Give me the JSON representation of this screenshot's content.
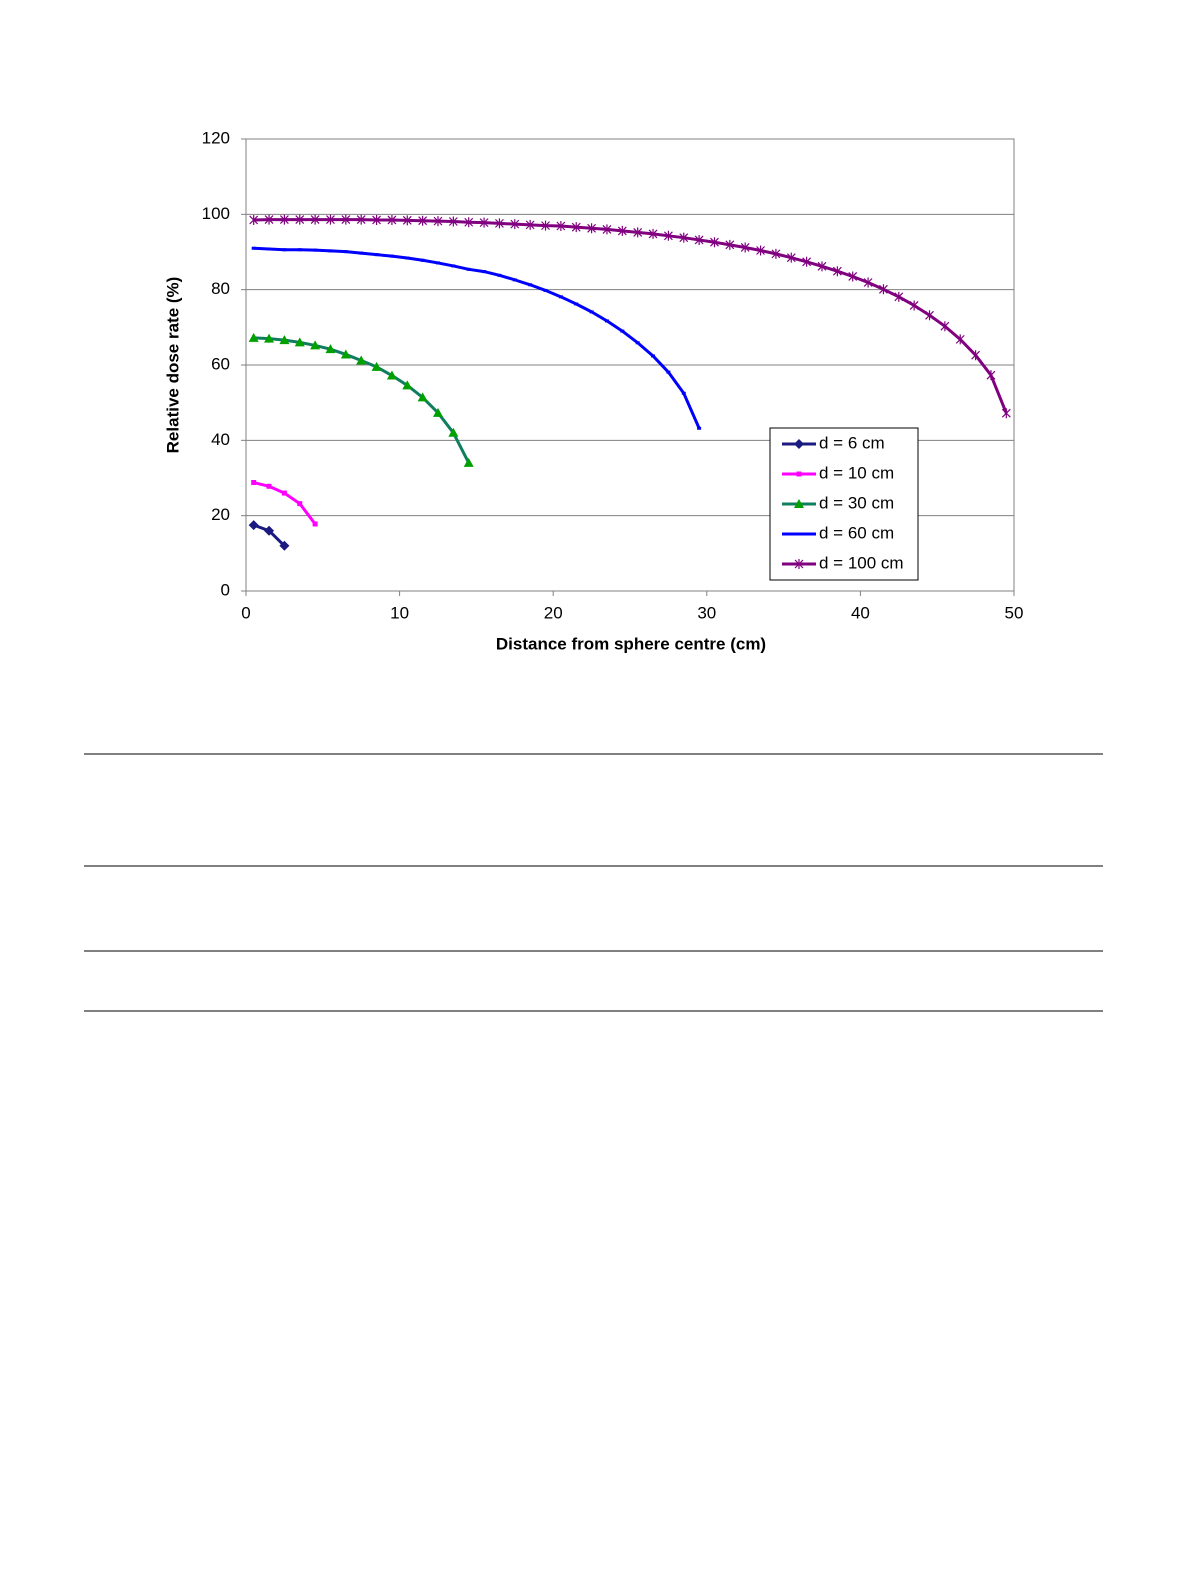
{
  "chart_data": {
    "type": "line",
    "xlabel": "Distance from sphere centre (cm)",
    "ylabel": "Relative dose rate (%)",
    "xlim": [
      0,
      50
    ],
    "xticks": [
      0,
      10,
      20,
      30,
      40,
      50
    ],
    "ylim": [
      0,
      120
    ],
    "yticks": [
      0,
      20,
      40,
      60,
      80,
      100,
      120
    ],
    "grid": true,
    "legend": "lower right",
    "series": [
      {
        "name": "d = 6 cm",
        "color": "#1a1a80",
        "marker": "diamond",
        "x": [
          0.5,
          1.5,
          2.5
        ],
        "values": [
          17.5,
          16,
          12
        ]
      },
      {
        "name": "d = 10 cm",
        "color": "#ff00ff",
        "marker": "square",
        "x": [
          0.5,
          1.5,
          2.5,
          3.5,
          4.5
        ],
        "values": [
          28.8,
          27.8,
          26,
          23.2,
          17.8
        ]
      },
      {
        "name": "d = 30 cm",
        "color": "#0e7e5e",
        "marker": "triangle",
        "x": [
          0.5,
          1.5,
          2.5,
          3.5,
          4.5,
          5.5,
          6.5,
          7.5,
          8.5,
          9.5,
          10.5,
          11.5,
          12.5,
          13.5,
          14.5
        ],
        "values": [
          67.2,
          67,
          66.6,
          66,
          65.2,
          64.2,
          62.8,
          61.2,
          59.5,
          57.2,
          54.6,
          51.4,
          47.3,
          42,
          34
        ]
      },
      {
        "name": "d = 60 cm",
        "color": "#0000ff",
        "marker": "dash",
        "x": [
          0.5,
          1.5,
          2.5,
          3.5,
          4.5,
          5.5,
          6.5,
          7.5,
          8.5,
          9.5,
          10.5,
          11.5,
          12.5,
          13.5,
          14.5,
          15.5,
          16.5,
          17.5,
          18.5,
          19.5,
          20.5,
          21.5,
          22.5,
          23.5,
          24.5,
          25.5,
          26.5,
          27.5,
          28.5,
          29.5
        ],
        "values": [
          91,
          90.8,
          90.6,
          90.6,
          90.5,
          90.3,
          90.1,
          89.7,
          89.3,
          88.9,
          88.4,
          87.8,
          87.1,
          86.3,
          85.4,
          84.8,
          83.8,
          82.6,
          81.3,
          79.8,
          78.1,
          76.2,
          74.1,
          71.7,
          69,
          65.9,
          62.4,
          58.1,
          52.5,
          43.2
        ]
      },
      {
        "name": "d = 100 cm",
        "color": "#800080",
        "marker": "star",
        "x": [
          0.5,
          1.5,
          2.5,
          3.5,
          4.5,
          5.5,
          6.5,
          7.5,
          8.5,
          9.5,
          10.5,
          11.5,
          12.5,
          13.5,
          14.5,
          15.5,
          16.5,
          17.5,
          18.5,
          19.5,
          20.5,
          21.5,
          22.5,
          23.5,
          24.5,
          25.5,
          26.5,
          27.5,
          28.5,
          29.5,
          30.5,
          31.5,
          32.5,
          33.5,
          34.5,
          35.5,
          36.5,
          37.5,
          38.5,
          39.5,
          40.5,
          41.5,
          42.5,
          43.5,
          44.5,
          45.5,
          46.5,
          47.5,
          48.5,
          49.5
        ],
        "values": [
          98.5,
          98.6,
          98.6,
          98.6,
          98.6,
          98.6,
          98.6,
          98.6,
          98.5,
          98.5,
          98.4,
          98.3,
          98.2,
          98.1,
          97.9,
          97.8,
          97.6,
          97.4,
          97.2,
          97,
          96.9,
          96.6,
          96.3,
          96,
          95.6,
          95.2,
          94.8,
          94.3,
          93.8,
          93.2,
          92.6,
          91.9,
          91.2,
          90.4,
          89.5,
          88.5,
          87.4,
          86.2,
          84.9,
          83.5,
          81.9,
          80.1,
          78.1,
          75.8,
          73.2,
          70.3,
          66.8,
          62.6,
          57.3,
          47.2
        ]
      }
    ]
  }
}
